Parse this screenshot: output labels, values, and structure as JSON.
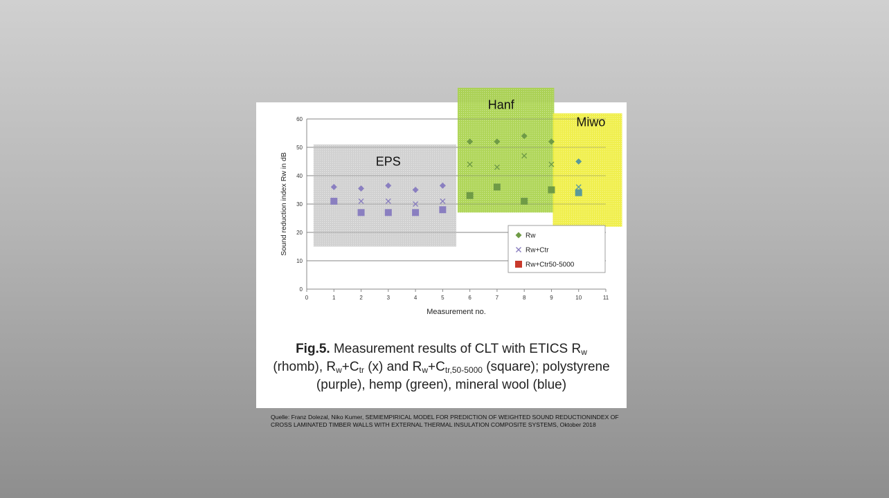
{
  "chart_data": {
    "type": "scatter",
    "title": "",
    "xlabel": "Measurement no.",
    "ylabel": "Sound reduction index Rw in dB",
    "xlim": [
      0,
      11
    ],
    "ylim": [
      0,
      60
    ],
    "x_ticks": [
      "0",
      "1",
      "2",
      "3",
      "4",
      "5",
      "6",
      "7",
      "8",
      "9",
      "10",
      "11"
    ],
    "y_ticks": [
      "0",
      "10",
      "20",
      "30",
      "40",
      "50",
      "60"
    ],
    "grid": "horizontal",
    "legend_position": "bottom-right",
    "legend": [
      "Rw",
      "Rw+Ctr",
      "Rw+Ctr50-5000"
    ],
    "series": [
      {
        "name": "Rw",
        "marker": "diamond",
        "points": [
          [
            1,
            36
          ],
          [
            2,
            35.5
          ],
          [
            3,
            36.5
          ],
          [
            4,
            35
          ],
          [
            5,
            36.5
          ],
          [
            6,
            52
          ],
          [
            7,
            52
          ],
          [
            8,
            54
          ],
          [
            9,
            52
          ],
          [
            10,
            45
          ]
        ]
      },
      {
        "name": "Rw+Ctr",
        "marker": "x",
        "points": [
          [
            1,
            31
          ],
          [
            2,
            31
          ],
          [
            3,
            31
          ],
          [
            4,
            30
          ],
          [
            5,
            31
          ],
          [
            6,
            44
          ],
          [
            7,
            43
          ],
          [
            8,
            47
          ],
          [
            9,
            44
          ],
          [
            10,
            36
          ]
        ]
      },
      {
        "name": "Rw+Ctr50-5000",
        "marker": "square",
        "points": [
          [
            1,
            31
          ],
          [
            2,
            27
          ],
          [
            3,
            27
          ],
          [
            4,
            27
          ],
          [
            5,
            28
          ],
          [
            6,
            33
          ],
          [
            7,
            36
          ],
          [
            8,
            31
          ],
          [
            9,
            35
          ],
          [
            10,
            34
          ]
        ]
      }
    ],
    "region_labels": [
      "EPS",
      "Hanf",
      "Miwo"
    ],
    "colors": {
      "polystyrene": "#8a7fc0",
      "hemp": "#6f9b46",
      "mineral_wool": "#5a9a9a",
      "eps_overlay": "#c8c8c8",
      "hanf_overlay": "#a8d24e",
      "miwo_overlay": "#f0ef3e"
    }
  },
  "caption": {
    "fig": "Fig.5.",
    "t1": " Measurement results of CLT with ETICS R",
    "s1": "w",
    "t2": "(rhomb), R",
    "s2": "w",
    "t3": "+C",
    "s3": "tr",
    "t4": " (x) and R",
    "s4": "w",
    "t5": "+C",
    "s5": "tr,50-5000",
    "t6": " (square); polystyrene",
    "line3": "(purple), hemp (green), mineral wool (blue)"
  },
  "source": "Quelle: Franz Dolezal, Niko Kumer, SEMIEMPIRICAL MODEL FOR PREDICTION OF WEIGHTED SOUND REDUCTIONINDEX OF CROSS LAMINATED TIMBER WALLS WITH EXTERNAL THERMAL INSULATION COMPOSITE SYSTEMS, Oktober 2018"
}
